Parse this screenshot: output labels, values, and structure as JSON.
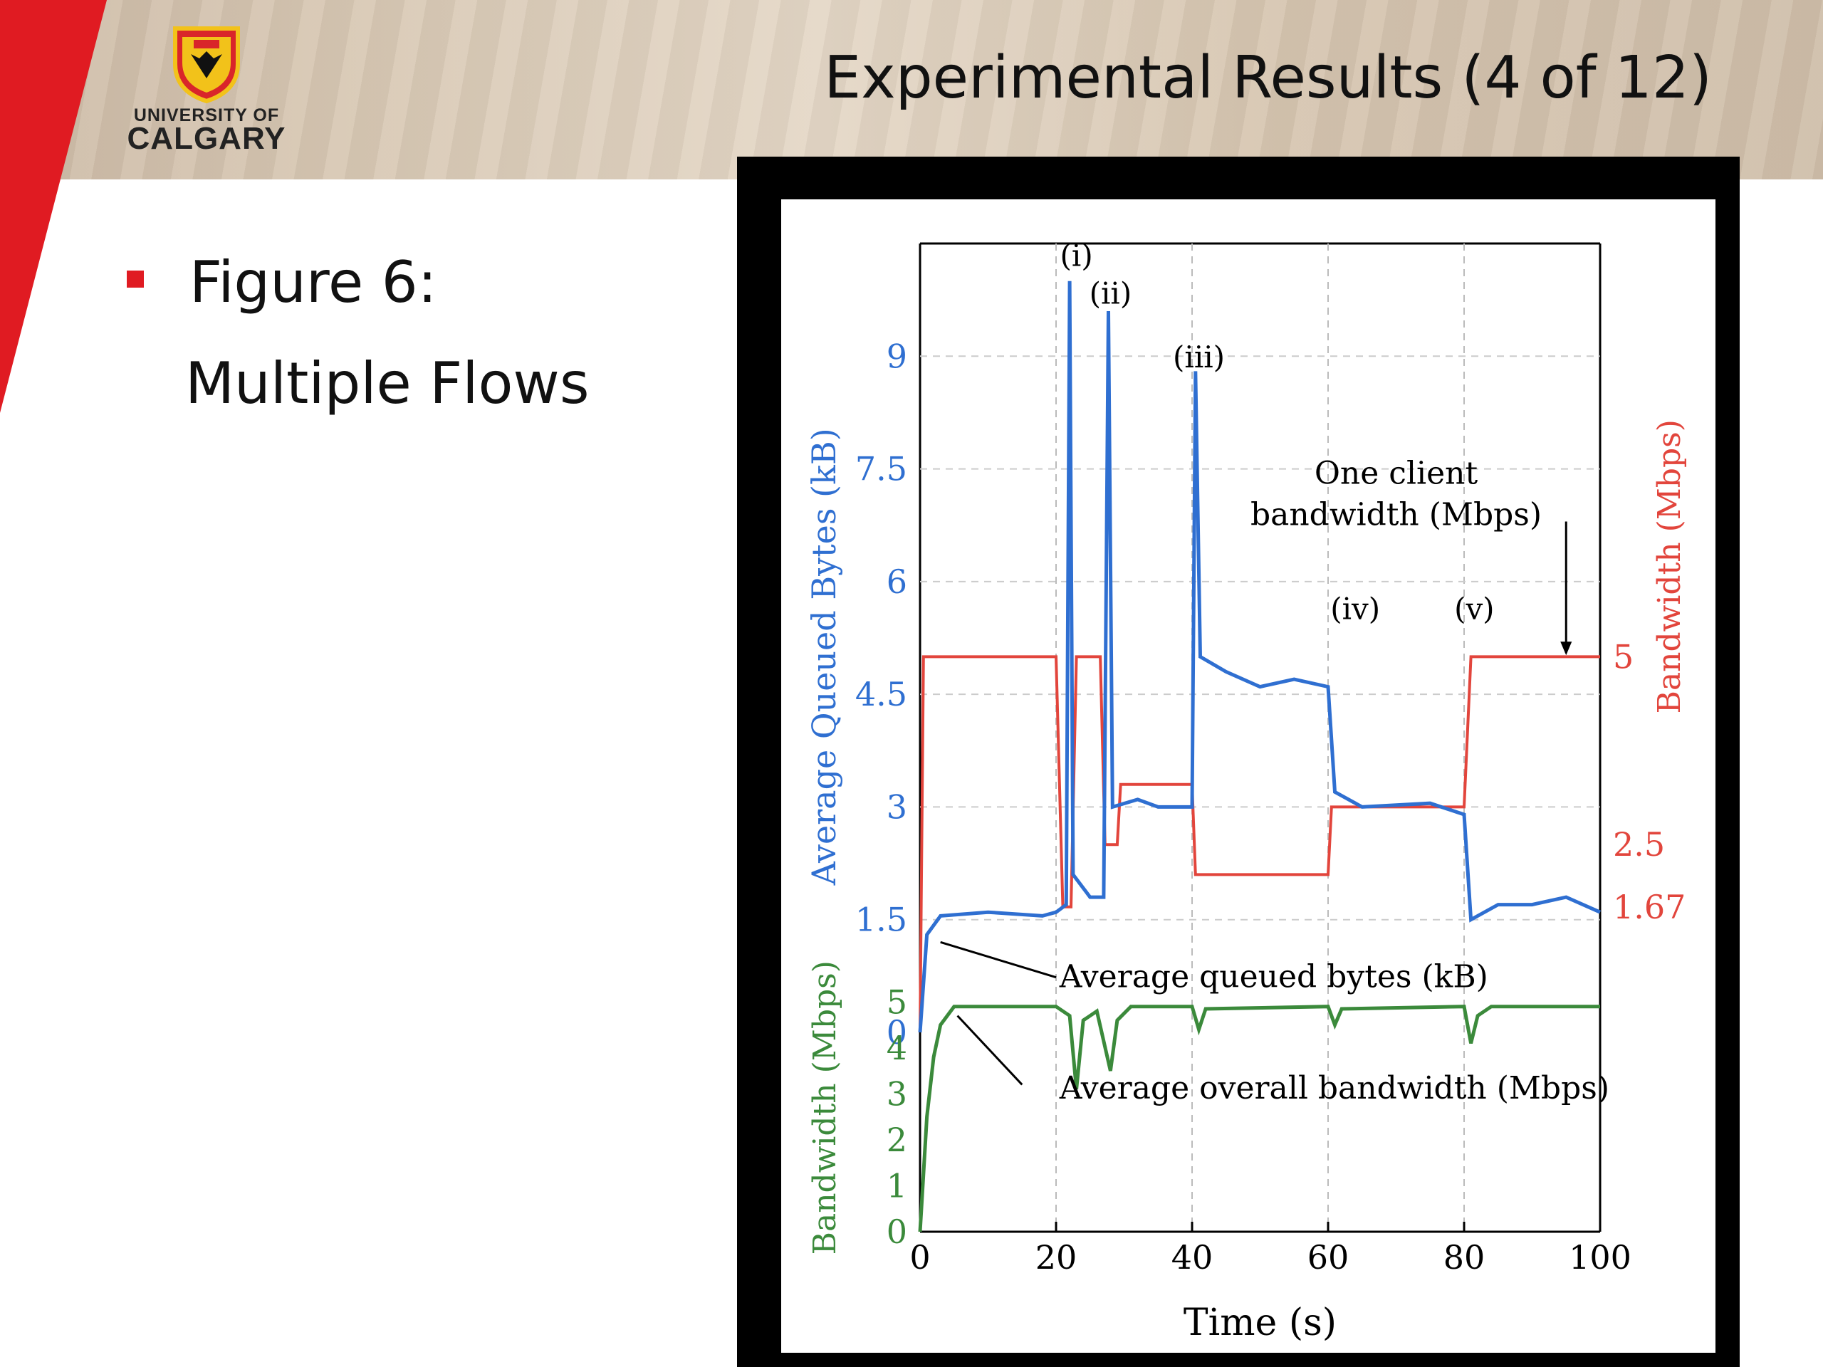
{
  "slide": {
    "title": "Experimental Results (4 of 12)",
    "logo": {
      "line1": "UNIVERSITY OF",
      "line2": "CALGARY"
    },
    "bullet": {
      "line1": "Figure 6:",
      "line2": "Multiple Flows"
    }
  },
  "colors": {
    "red_accent": "#e01b22",
    "queue_blue": "#2f6fd1",
    "client_red": "#e2453c",
    "overall_green": "#3b8a3b"
  },
  "chart_data": {
    "type": "line",
    "xlabel": "Time (s)",
    "xlim": [
      0,
      100
    ],
    "x_ticks": [
      "0",
      "20",
      "40",
      "60",
      "80",
      "100"
    ],
    "top_panel": {
      "ylabel_left": "Average Queued Bytes (kB)",
      "ylabel_right": "Bandwidth (Mbps)",
      "ylim": [
        0,
        10.5
      ],
      "yticks_left": [
        "0",
        "1.5",
        "3",
        "4.5",
        "6",
        "7.5",
        "9"
      ],
      "yticks_right": [
        "5",
        "2.5",
        "1.67"
      ],
      "series": [
        {
          "name": "Average queued bytes (kB)",
          "color": "#2f6fd1",
          "points": [
            [
              0,
              0
            ],
            [
              1,
              1.3
            ],
            [
              3,
              1.55
            ],
            [
              10,
              1.6
            ],
            [
              18,
              1.55
            ],
            [
              20,
              1.6
            ],
            [
              21.5,
              1.7
            ],
            [
              22,
              10
            ],
            [
              22.5,
              2.1
            ],
            [
              25,
              1.8
            ],
            [
              27,
              1.8
            ],
            [
              27.7,
              9.6
            ],
            [
              28.3,
              3
            ],
            [
              32,
              3.1
            ],
            [
              35,
              3
            ],
            [
              40,
              3
            ],
            [
              40.5,
              8.8
            ],
            [
              41.2,
              5
            ],
            [
              45,
              4.8
            ],
            [
              50,
              4.6
            ],
            [
              55,
              4.7
            ],
            [
              60,
              4.6
            ],
            [
              61,
              3.2
            ],
            [
              65,
              3
            ],
            [
              75,
              3.05
            ],
            [
              80,
              2.9
            ],
            [
              81,
              1.5
            ],
            [
              85,
              1.7
            ],
            [
              90,
              1.7
            ],
            [
              95,
              1.8
            ],
            [
              100,
              1.6
            ]
          ]
        },
        {
          "name": "One client bandwidth (Mbps)",
          "color": "#e2453c",
          "points": [
            [
              0,
              0
            ],
            [
              0.5,
              5
            ],
            [
              20,
              5
            ],
            [
              21,
              1.67
            ],
            [
              22.2,
              1.67
            ],
            [
              23,
              5
            ],
            [
              26.5,
              5
            ],
            [
              27.2,
              2.5
            ],
            [
              28,
              2.5
            ],
            [
              29,
              2.5
            ],
            [
              29.5,
              3.3
            ],
            [
              40,
              3.3
            ],
            [
              40.5,
              2.1
            ],
            [
              60,
              2.1
            ],
            [
              60.5,
              3
            ],
            [
              80,
              3
            ],
            [
              81,
              5
            ],
            [
              100,
              5
            ]
          ]
        }
      ],
      "annotations": [
        "(i)",
        "(ii)",
        "(iii)",
        "(iv)",
        "(v)",
        "One client",
        "bandwidth (Mbps)",
        "Average queued bytes (kB)"
      ]
    },
    "bottom_panel": {
      "ylabel": "Bandwidth (Mbps)",
      "ylim": [
        0,
        5.5
      ],
      "yticks": [
        "0",
        "1",
        "2",
        "3",
        "4",
        "5"
      ],
      "series": [
        {
          "name": "Average overall bandwidth (Mbps)",
          "color": "#3b8a3b",
          "points": [
            [
              0,
              0
            ],
            [
              1,
              2.5
            ],
            [
              2,
              3.8
            ],
            [
              3,
              4.5
            ],
            [
              5,
              4.9
            ],
            [
              20,
              4.9
            ],
            [
              22,
              4.7
            ],
            [
              23,
              3.1
            ],
            [
              24,
              4.6
            ],
            [
              26,
              4.8
            ],
            [
              28,
              3.5
            ],
            [
              29,
              4.6
            ],
            [
              31,
              4.9
            ],
            [
              40,
              4.9
            ],
            [
              41,
              4.4
            ],
            [
              42,
              4.85
            ],
            [
              60,
              4.9
            ],
            [
              61,
              4.5
            ],
            [
              62,
              4.85
            ],
            [
              80,
              4.9
            ],
            [
              81,
              4.1
            ],
            [
              82,
              4.7
            ],
            [
              84,
              4.9
            ],
            [
              100,
              4.9
            ]
          ]
        }
      ],
      "annotations": [
        "Average overall bandwidth (Mbps)"
      ]
    }
  }
}
